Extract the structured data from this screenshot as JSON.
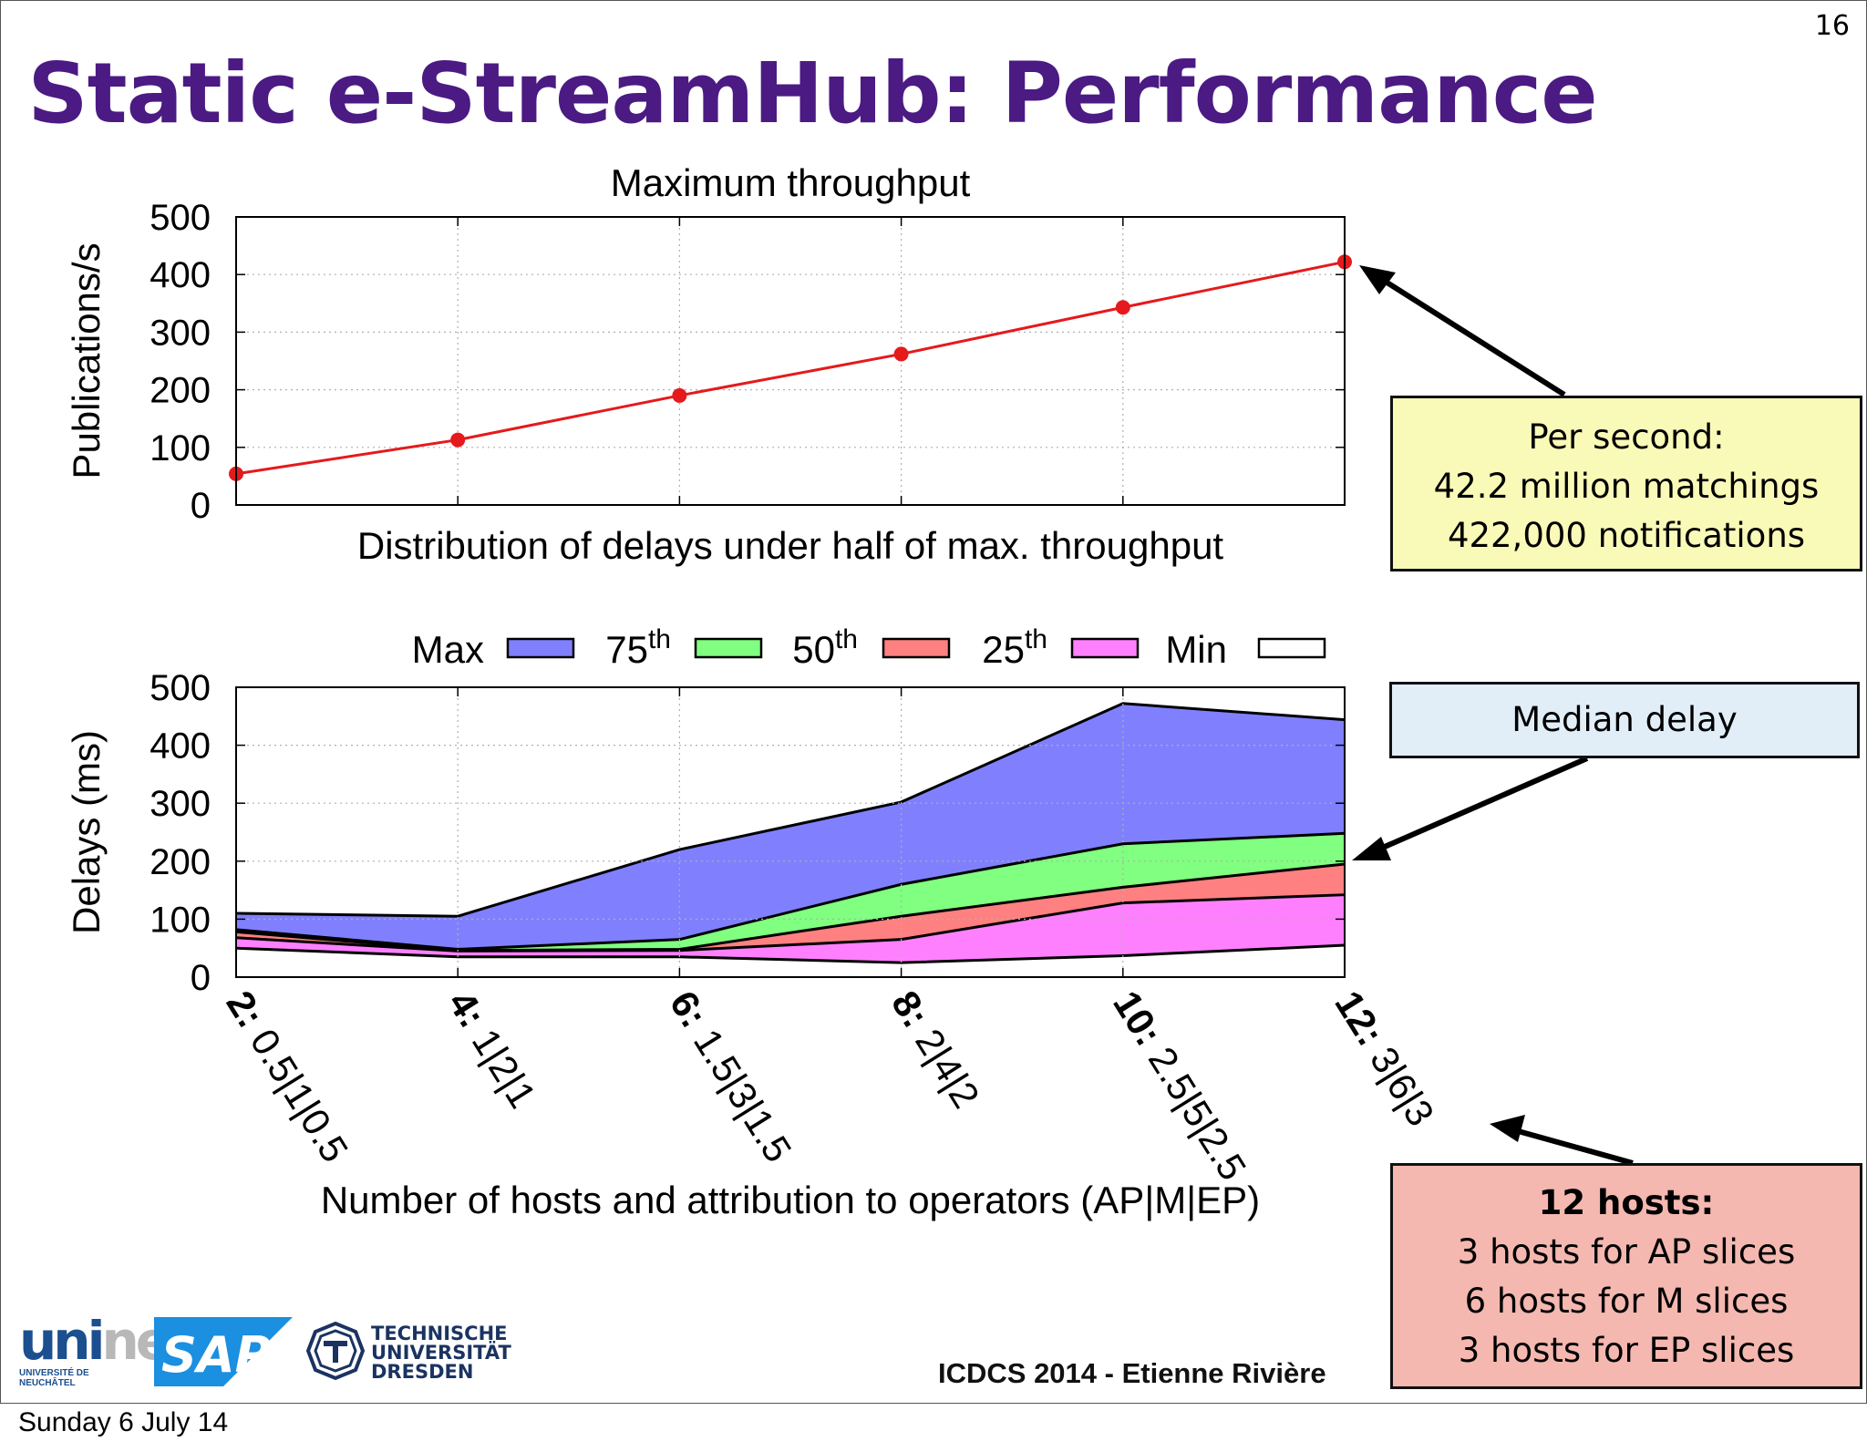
{
  "slide": {
    "page_number": "16",
    "title": "Static e-StreamHub: Performance",
    "footer_credit": "ICDCS 2014 - Etienne Rivière",
    "date": "Sunday 6 July 14",
    "logos": {
      "unine_word": "uni",
      "unine_word_tail": "ne",
      "unine_sub1": "UNIVERSITÉ DE",
      "unine_sub2": "NEUCHÂTEL",
      "sap": "SAP",
      "tud_line1": "TECHNISCHE",
      "tud_line2": "UNIVERSITÄT",
      "tud_line3": "DRESDEN"
    }
  },
  "callouts": {
    "throughput": {
      "line1": "Per second:",
      "line2": "42.2 million matchings",
      "line3": "422,000 notifications"
    },
    "median": {
      "line1": "Median delay"
    },
    "hosts": {
      "title": "12 hosts:",
      "line1": "3 hosts for AP slices",
      "line2": "6 hosts for M slices",
      "line3": "3 hosts for EP slices"
    }
  },
  "colors": {
    "title": "#4b1a83",
    "line": "#e41a1c",
    "max": "#8080ff",
    "p75": "#80ff80",
    "p50": "#ff8080",
    "p25": "#ff80ff",
    "min": "#ffffff"
  },
  "chart_data": [
    {
      "type": "line",
      "title": "Maximum throughput",
      "xlabel": "Distribution of delays under half of max. throughput",
      "ylabel": "Publications/s",
      "categories": [
        "2",
        "4",
        "6",
        "8",
        "10",
        "12"
      ],
      "values": [
        54,
        113,
        190,
        262,
        343,
        422
      ],
      "ylim": [
        0,
        500
      ],
      "yticks": [
        "0",
        "100",
        "200",
        "300",
        "400",
        "500"
      ],
      "grid": true
    },
    {
      "type": "area",
      "xlabel": "Number of hosts and attribution to operators (AP|M|EP)",
      "ylabel": "Delays (ms)",
      "ylim": [
        0,
        500
      ],
      "yticks": [
        "0",
        "100",
        "200",
        "300",
        "400",
        "500"
      ],
      "grid": true,
      "legend_position": "top",
      "categories": [
        {
          "hosts": "2:",
          "split": "0.5|1|0.5"
        },
        {
          "hosts": "4:",
          "split": "1|2|1"
        },
        {
          "hosts": "6:",
          "split": "1.5|3|1.5"
        },
        {
          "hosts": "8:",
          "split": "2|4|2"
        },
        {
          "hosts": "10:",
          "split": "2.5|5|2.5"
        },
        {
          "hosts": "12:",
          "split": "3|6|3"
        }
      ],
      "series": [
        {
          "name": "Max",
          "values": [
            110,
            105,
            220,
            302,
            472,
            444
          ]
        },
        {
          "name": "75",
          "values": [
            82,
            48,
            65,
            160,
            230,
            248
          ]
        },
        {
          "name": "50",
          "values": [
            78,
            46,
            48,
            105,
            155,
            195
          ]
        },
        {
          "name": "25",
          "values": [
            68,
            45,
            46,
            65,
            128,
            142
          ]
        },
        {
          "name": "Min",
          "values": [
            50,
            35,
            35,
            25,
            37,
            55
          ]
        }
      ],
      "legend_suffix": {
        "75": "th",
        "50": "th",
        "25": "th"
      }
    }
  ]
}
